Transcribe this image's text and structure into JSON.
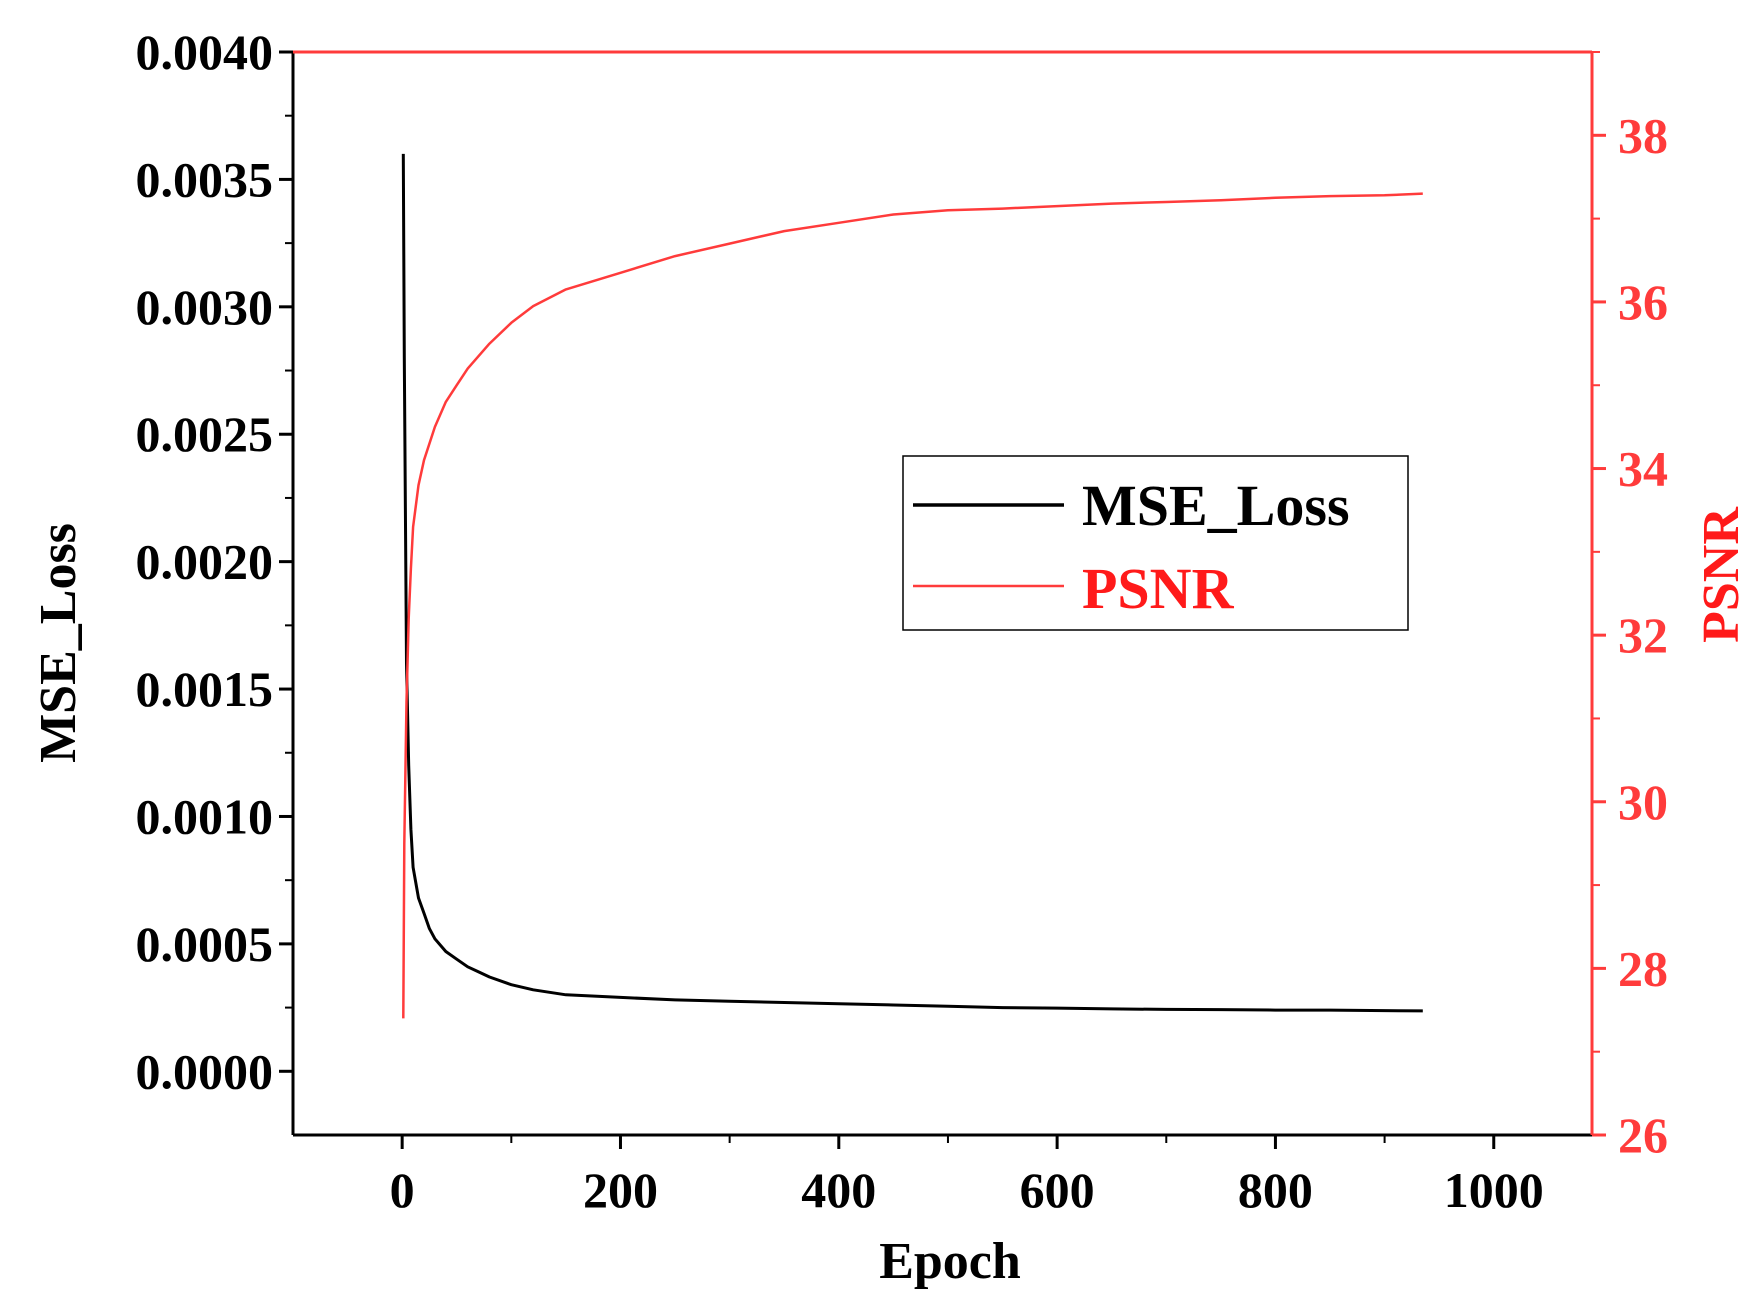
{
  "chart_data": {
    "type": "line",
    "title": "",
    "xlabel": "Epoch",
    "ylabel_left": "MSE_Loss",
    "ylabel_right": "PSNR",
    "xlim": [
      -100,
      1090
    ],
    "ylim_left": [
      -0.00025,
      0.004
    ],
    "ylim_right": [
      26,
      39
    ],
    "x_ticks": [
      0,
      200,
      400,
      600,
      800,
      1000
    ],
    "x_tick_labels": [
      "0",
      "200",
      "400",
      "600",
      "800",
      "1000"
    ],
    "y_left_ticks": [
      0.0,
      0.0005,
      0.001,
      0.0015,
      0.002,
      0.0025,
      0.003,
      0.0035,
      0.004
    ],
    "y_left_tick_labels": [
      "0.0000",
      "0.0005",
      "0.0010",
      "0.0015",
      "0.0020",
      "0.0025",
      "0.0030",
      "0.0035",
      "0.0040"
    ],
    "y_right_ticks": [
      26,
      28,
      30,
      32,
      34,
      36,
      38
    ],
    "y_right_tick_labels": [
      "26",
      "28",
      "30",
      "32",
      "34",
      "36",
      "38"
    ],
    "legend": {
      "position": "center-right",
      "entries": [
        "MSE_Loss",
        "PSNR"
      ]
    },
    "series": [
      {
        "name": "MSE_Loss",
        "axis": "left",
        "color": "#000000",
        "x": [
          1,
          2,
          4,
          6,
          8,
          10,
          15,
          20,
          25,
          30,
          40,
          50,
          60,
          70,
          80,
          100,
          120,
          150,
          200,
          250,
          300,
          350,
          400,
          450,
          500,
          550,
          600,
          650,
          700,
          750,
          800,
          850,
          900,
          935
        ],
        "y": [
          0.0036,
          0.0028,
          0.0016,
          0.0012,
          0.00095,
          0.0008,
          0.00068,
          0.00062,
          0.00056,
          0.00052,
          0.00047,
          0.00044,
          0.00041,
          0.00039,
          0.00037,
          0.00034,
          0.00032,
          0.0003,
          0.00029,
          0.00028,
          0.000275,
          0.00027,
          0.000265,
          0.00026,
          0.000255,
          0.00025,
          0.000248,
          0.000245,
          0.000243,
          0.000242,
          0.00024,
          0.00024,
          0.000238,
          0.000237
        ]
      },
      {
        "name": "PSNR",
        "axis": "right",
        "color": "#ff3b3b",
        "x": [
          1,
          2,
          4,
          6,
          8,
          10,
          15,
          20,
          30,
          40,
          50,
          60,
          80,
          100,
          120,
          150,
          200,
          250,
          300,
          350,
          400,
          450,
          500,
          550,
          600,
          650,
          700,
          750,
          800,
          850,
          900,
          935
        ],
        "y": [
          27.4,
          29.5,
          31.2,
          32.2,
          32.8,
          33.3,
          33.8,
          34.1,
          34.5,
          34.8,
          35.0,
          35.2,
          35.5,
          35.75,
          35.95,
          36.15,
          36.35,
          36.55,
          36.7,
          36.85,
          36.95,
          37.05,
          37.1,
          37.12,
          37.15,
          37.18,
          37.2,
          37.22,
          37.25,
          37.27,
          37.28,
          37.3
        ]
      }
    ]
  }
}
